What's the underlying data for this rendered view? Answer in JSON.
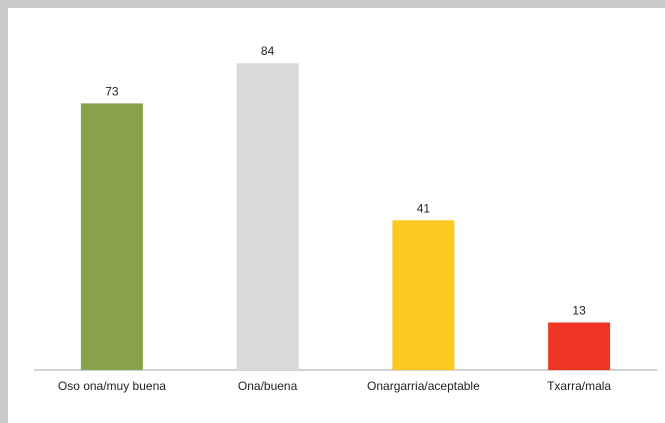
{
  "chart_data": {
    "type": "bar",
    "title": "",
    "xlabel": "",
    "ylabel": "",
    "ylim": [
      0,
      92
    ],
    "grid": false,
    "legend": "none",
    "categories": [
      "Oso ona/muy buena",
      "Ona/buena",
      "Onargarria/aceptable",
      "Txarra/mala"
    ],
    "values": [
      73,
      84,
      41,
      13
    ],
    "value_labels": [
      "73",
      "84",
      "41",
      "13"
    ],
    "colors": [
      "#88a24c",
      "#d9d9d9",
      "#fdc921",
      "#ee3524"
    ]
  }
}
